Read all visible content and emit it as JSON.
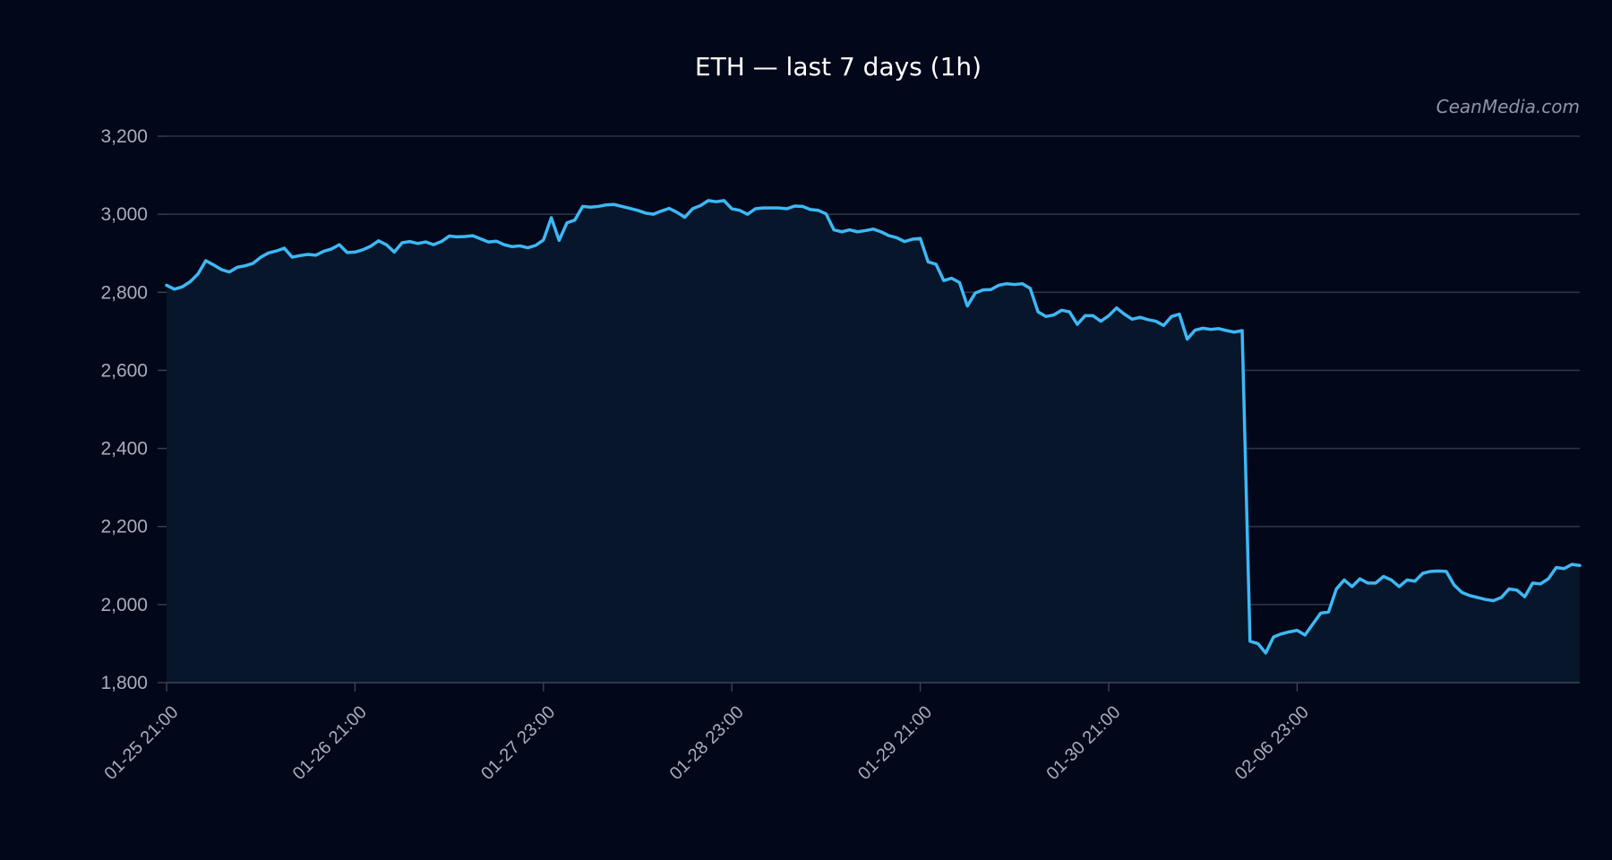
{
  "chart_data": {
    "type": "area",
    "title": "ETH — last 7 days (1h)",
    "watermark": "CeanMedia.com",
    "xlabel": "",
    "ylabel": "",
    "ylim": [
      1800,
      3200
    ],
    "yticks": [
      1800,
      2000,
      2200,
      2400,
      2600,
      2800,
      3000,
      3200
    ],
    "ytick_labels": [
      "1,800",
      "2,000",
      "2,200",
      "2,400",
      "2,600",
      "2,800",
      "3,000",
      "3,200"
    ],
    "xtick_labels": [
      "01-25 21:00",
      "01-26 21:00",
      "01-27 23:00",
      "01-28 23:00",
      "01-29 21:00",
      "01-30 21:00",
      "02-06 23:00"
    ],
    "xtick_index": [
      0,
      24,
      48,
      72,
      96,
      120,
      144
    ],
    "grid": true,
    "legend": "none",
    "colors": {
      "background": "#03071a",
      "line": "#3db8f5",
      "fill": "#07162a",
      "grid": "#2c3445",
      "text": "#a7adb9",
      "title": "#ffffff"
    },
    "series": [
      {
        "values": [
          2818,
          2808,
          2814,
          2827,
          2847,
          2881,
          2870,
          2858,
          2852,
          2864,
          2868,
          2874,
          2890,
          2901,
          2906,
          2913,
          2890,
          2894,
          2897,
          2895,
          2905,
          2911,
          2922,
          2902,
          2903,
          2909,
          2918,
          2932,
          2922,
          2903,
          2927,
          2930,
          2925,
          2929,
          2922,
          2930,
          2944,
          2942,
          2943,
          2945,
          2937,
          2929,
          2931,
          2922,
          2917,
          2919,
          2914,
          2920,
          2934,
          2991,
          2933,
          2978,
          2985,
          3020,
          3018,
          3020,
          3024,
          3025,
          3020,
          3015,
          3010,
          3003,
          3000,
          3008,
          3015,
          3005,
          2992,
          3014,
          3022,
          3035,
          3032,
          3035,
          3014,
          3010,
          3000,
          3014,
          3016,
          3016,
          3016,
          3014,
          3021,
          3020,
          3012,
          3010,
          3001,
          2960,
          2955,
          2960,
          2955,
          2958,
          2962,
          2955,
          2945,
          2940,
          2930,
          2936,
          2938,
          2878,
          2872,
          2830,
          2836,
          2825,
          2765,
          2798,
          2806,
          2807,
          2818,
          2822,
          2820,
          2822,
          2810,
          2750,
          2738,
          2742,
          2754,
          2750,
          2718,
          2740,
          2740,
          2726,
          2740,
          2760,
          2744,
          2731,
          2736,
          2730,
          2726,
          2715,
          2738,
          2744,
          2680,
          2703,
          2708,
          2705,
          2707,
          2702,
          2698,
          2702,
          1906,
          1900,
          1876,
          1917,
          1925,
          1930,
          1934,
          1922,
          1950,
          1978,
          1981,
          2040,
          2063,
          2046,
          2066,
          2055,
          2055,
          2072,
          2063,
          2046,
          2063,
          2060,
          2080,
          2085,
          2086,
          2085,
          2050,
          2031,
          2023,
          2018,
          2013,
          2010,
          2018,
          2040,
          2037,
          2020,
          2055,
          2053,
          2066,
          2095,
          2092,
          2103,
          2100
        ]
      }
    ]
  }
}
